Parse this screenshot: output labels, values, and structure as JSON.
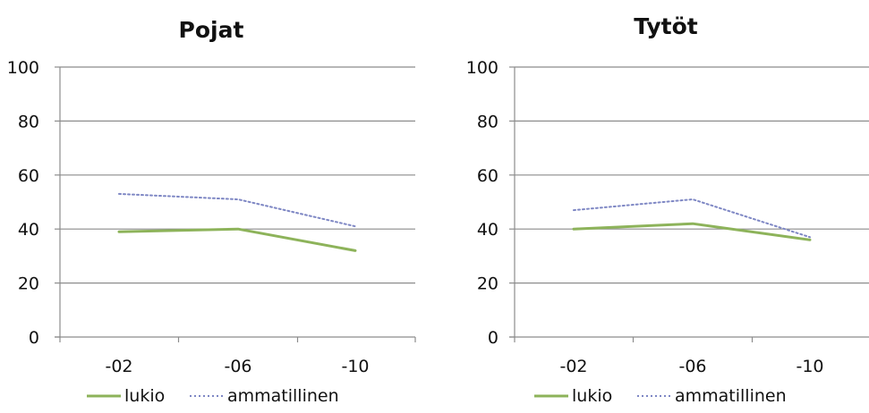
{
  "chart_data": [
    {
      "type": "line",
      "title": "Pojat",
      "categories": [
        "-02",
        "-06",
        "-10"
      ],
      "ylim": [
        0,
        100
      ],
      "yticks": [
        "0",
        "20",
        "40",
        "60",
        "80",
        "100"
      ],
      "grid": true,
      "legend": "bottom",
      "series": [
        {
          "name": "lukio",
          "values": [
            39,
            40,
            32
          ],
          "color": "#8db35a",
          "style": "solid"
        },
        {
          "name": "ammatillinen",
          "values": [
            53,
            51,
            41
          ],
          "color": "#7e87c4",
          "style": "dotted"
        }
      ]
    },
    {
      "type": "line",
      "title": "Tytöt",
      "categories": [
        "-02",
        "-06",
        "-10"
      ],
      "ylim": [
        0,
        100
      ],
      "yticks": [
        "0",
        "20",
        "40",
        "60",
        "80",
        "100"
      ],
      "grid": true,
      "legend": "bottom",
      "series": [
        {
          "name": "lukio",
          "values": [
            40,
            42,
            36
          ],
          "color": "#8db35a",
          "style": "solid"
        },
        {
          "name": "ammatillinen",
          "values": [
            47,
            51,
            37
          ],
          "color": "#7e87c4",
          "style": "dotted"
        }
      ]
    }
  ]
}
